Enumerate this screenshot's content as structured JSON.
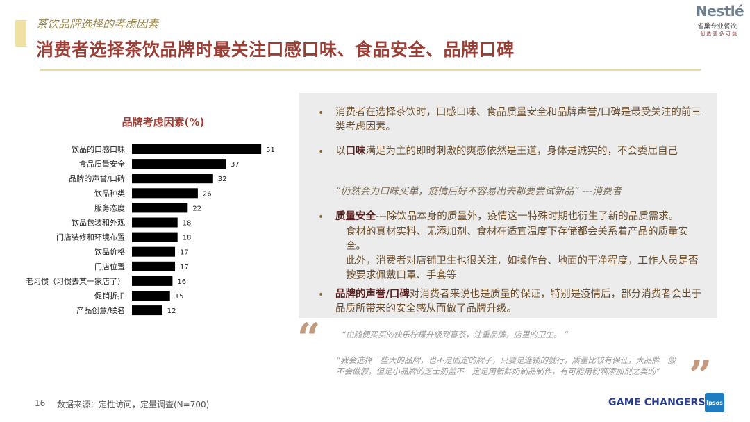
{
  "section_title": "茶饮品牌选择的考虑因素",
  "main_title": "消费者选择茶饮品牌时最关注口感口味、食品安全、品牌口碑",
  "logo": {
    "name": "Nestlé",
    "sub": "雀巢专业餐饮",
    "tagline": "创 造 更 多 可 能"
  },
  "chart_data": {
    "type": "bar",
    "orientation": "horizontal",
    "title": "品牌考虑因素(%)",
    "categories": [
      "饮品的口感口味",
      "食品质量安全",
      "品牌的声誉/口碑",
      "饮品种类",
      "服务态度",
      "饮品包装和外观",
      "门店装修和环境布置",
      "饮品价格",
      "门店位置",
      "老习惯（习惯去某一家店了）",
      "促销折扣",
      "产品创意/联名"
    ],
    "values": [
      51,
      37,
      32,
      26,
      22,
      18,
      18,
      17,
      17,
      16,
      15,
      12
    ],
    "bar_color": "#000000"
  },
  "panel": {
    "b1": "消费者在选择茶饮时，口感口味、食品质量安全和品牌声誉/口碑是最受关注的前三类考虑因素。",
    "b2_bold": "口味",
    "b2_pre": "以",
    "b2_rest": "满足为主的即时刺激的爽感依然是王道，身体是诚实的，不会委屈自己",
    "quote": "“仍然会为口味买单，疫情后好不容易出去都要尝试新品” ---消费者",
    "b3_bold": "质量安全",
    "b3_rest": "---除饮品本身的质量外，疫情这一特殊时期也衍生了新的品质需求。",
    "b3_p2": "食材的真材实料、无添加剂、食材在适宜温度下存储都会关系着产品的质量安全。",
    "b3_p3": "此外，消费者对店铺卫生也很关注，如操作台、地面的干净程度，工作人员是否按要求佩戴口罩、手套等",
    "b4_bold": "品牌的声誉/口碑",
    "b4_rest": "对消费者来说也是质量的保证，特别是疫情后，部分消费者会出于品质所带来的安全感从而做了品牌升级。"
  },
  "quotes": {
    "q1": "“由随便买买的快乐柠檬升级到喜茶，注重品牌，店里的卫生。 ”",
    "q2": "“我会选择一些大的品牌，也不是固定的牌子，只要是连锁的就行，质量比较有保证，大品牌一般不会做假，但是小品牌的芝士奶盖不一定是用新鲜奶制品制作，有可能用粉啊添加剂之类的”"
  },
  "footer": {
    "page": "16",
    "source": "数据来源：定性访问，定量调查(N=700)",
    "brand": "GAME CHANGERS",
    "ipsos": "Ipsos"
  }
}
